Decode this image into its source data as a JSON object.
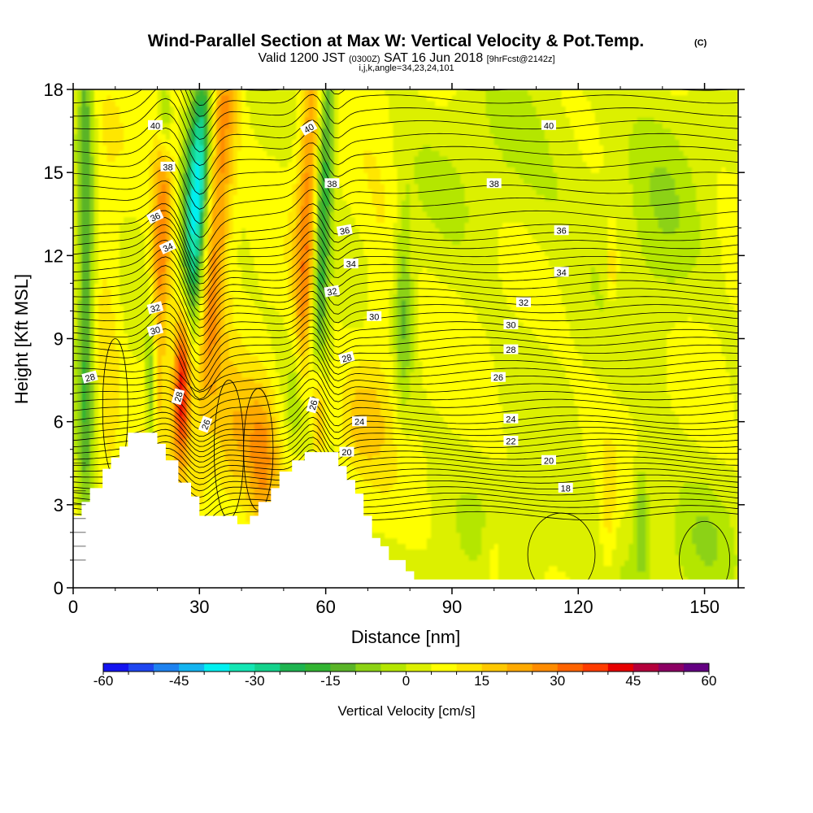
{
  "chart_data": {
    "type": "heatmap",
    "title": "Wind-Parallel Section at Max W: Vertical Velocity & Pot.Temp.",
    "title_mark": "(C)",
    "subtitle_parts": [
      "Valid 1200 JST",
      "(0300Z)",
      "SAT 16 Jun 2018",
      "[9hrFcst@2142z]"
    ],
    "subtitle2": "i,j,k,angle=34,23,24,101",
    "xlabel": "Distance [nm]",
    "ylabel": "Height [Kft MSL]",
    "xlim": [
      0,
      158
    ],
    "ylim": [
      0,
      18
    ],
    "x_ticks": [
      0,
      30,
      60,
      90,
      120,
      150
    ],
    "y_ticks": [
      0,
      3,
      6,
      9,
      12,
      15,
      18
    ],
    "grid": false,
    "colorbar": {
      "title": "Vertical Velocity [cm/s]",
      "range": [
        -60,
        60
      ],
      "tick_labels": [
        "-60",
        "-45",
        "-30",
        "-15",
        "0",
        "15",
        "30",
        "45",
        "60"
      ],
      "colors": [
        "#1414f0",
        "#1e46f0",
        "#1e82f0",
        "#14b4f0",
        "#00f0f0",
        "#14e6b4",
        "#14d28c",
        "#1eb450",
        "#32b432",
        "#5ab428",
        "#8cd214",
        "#b4e600",
        "#dcf000",
        "#ffff00",
        "#ffe600",
        "#ffc800",
        "#ffaa00",
        "#ff8c00",
        "#ff6400",
        "#ff3c00",
        "#e60000",
        "#b4003c",
        "#8c0064",
        "#640082"
      ]
    },
    "terrain": [
      [
        0,
        2.6
      ],
      [
        2,
        2.6
      ],
      [
        2,
        3.1
      ],
      [
        4,
        3.1
      ],
      [
        4,
        3.6
      ],
      [
        7,
        3.6
      ],
      [
        7,
        4.3
      ],
      [
        9,
        4.3
      ],
      [
        9,
        4.7
      ],
      [
        11,
        4.7
      ],
      [
        11,
        5.1
      ],
      [
        13,
        5.1
      ],
      [
        13,
        5.6
      ],
      [
        20,
        5.6
      ],
      [
        20,
        5.2
      ],
      [
        22,
        5.2
      ],
      [
        22,
        4.6
      ],
      [
        25,
        4.6
      ],
      [
        25,
        3.8
      ],
      [
        28,
        3.8
      ],
      [
        28,
        3.3
      ],
      [
        30,
        3.3
      ],
      [
        30,
        2.6
      ],
      [
        39,
        2.6
      ],
      [
        39,
        2.3
      ],
      [
        42,
        2.3
      ],
      [
        42,
        2.6
      ],
      [
        44,
        2.6
      ],
      [
        44,
        3.1
      ],
      [
        47,
        3.1
      ],
      [
        47,
        3.6
      ],
      [
        49,
        3.6
      ],
      [
        49,
        4.2
      ],
      [
        52,
        4.2
      ],
      [
        52,
        4.6
      ],
      [
        55,
        4.6
      ],
      [
        55,
        4.9
      ],
      [
        63,
        4.9
      ],
      [
        63,
        4.4
      ],
      [
        65,
        4.4
      ],
      [
        65,
        3.9
      ],
      [
        67,
        3.9
      ],
      [
        67,
        3.4
      ],
      [
        69,
        3.4
      ],
      [
        69,
        2.6
      ],
      [
        71,
        2.6
      ],
      [
        71,
        1.8
      ],
      [
        73,
        1.8
      ],
      [
        73,
        1.5
      ],
      [
        75,
        1.5
      ],
      [
        75,
        1.0
      ],
      [
        79,
        1.0
      ],
      [
        79,
        0.6
      ],
      [
        81,
        0.6
      ],
      [
        81,
        0.3
      ],
      [
        158,
        0.3
      ]
    ],
    "w_features": [
      {
        "x": 3,
        "y": 12,
        "sx": 1.4,
        "sy": 9,
        "w": -22,
        "tilt": 0
      },
      {
        "x": 8,
        "y": 8,
        "sx": 2.5,
        "sy": 5,
        "w": 8,
        "tilt": 0
      },
      {
        "x": 18.5,
        "y": 7.2,
        "sx": 0.9,
        "sy": 2.0,
        "w": -24,
        "tilt": 0
      },
      {
        "x": 21,
        "y": 12.5,
        "sx": 1.8,
        "sy": 5,
        "w": 24,
        "tilt": 0.24
      },
      {
        "x": 26,
        "y": 7.5,
        "sx": 1.6,
        "sy": 2.3,
        "w": 60,
        "tilt": 0.15
      },
      {
        "x": 29,
        "y": 13,
        "sx": 2.1,
        "sy": 5.0,
        "w": -46,
        "tilt": 0.4
      },
      {
        "x": 34,
        "y": 14,
        "sx": 2.6,
        "sy": 6.0,
        "w": 26,
        "tilt": 0.4
      },
      {
        "x": 22,
        "y": 17.2,
        "sx": 1.2,
        "sy": 1.3,
        "w": -22,
        "tilt": 0
      },
      {
        "x": 38,
        "y": 5.2,
        "sx": 3.5,
        "sy": 2.0,
        "w": 14,
        "tilt": 0
      },
      {
        "x": 45,
        "y": 4.5,
        "sx": 2.8,
        "sy": 2.0,
        "w": 22,
        "tilt": 0
      },
      {
        "x": 53,
        "y": 6.5,
        "sx": 1.5,
        "sy": 1.8,
        "w": -18,
        "tilt": 0
      },
      {
        "x": 59,
        "y": 12.5,
        "sx": 1.5,
        "sy": 7.0,
        "w": -28,
        "tilt": 0.25
      },
      {
        "x": 55.5,
        "y": 12.5,
        "sx": 1.9,
        "sy": 7.0,
        "w": 24,
        "tilt": 0.25
      },
      {
        "x": 58,
        "y": 6.3,
        "sx": 1.3,
        "sy": 1.6,
        "w": 32,
        "tilt": 0
      },
      {
        "x": 68,
        "y": 6.0,
        "sx": 4.0,
        "sy": 1.4,
        "w": 10,
        "tilt": 0
      },
      {
        "x": 78.5,
        "y": 10.0,
        "sx": 1.5,
        "sy": 2.5,
        "w": -16,
        "tilt": 0
      },
      {
        "x": 73,
        "y": 10.5,
        "sx": 3.5,
        "sy": 4.0,
        "w": 6,
        "tilt": 0
      },
      {
        "x": 110,
        "y": 15,
        "sx": 20,
        "sy": 2.5,
        "w": -5,
        "tilt": 0
      },
      {
        "x": 140,
        "y": 13,
        "sx": 6,
        "sy": 3.5,
        "w": -6,
        "tilt": 0
      },
      {
        "x": 118,
        "y": 1.5,
        "sx": 20,
        "sy": 1.6,
        "w": -5,
        "tilt": 0
      },
      {
        "x": 127,
        "y": 2.5,
        "sx": 1.5,
        "sy": 1.6,
        "w": 10,
        "tilt": 0
      },
      {
        "x": 135,
        "y": 2.5,
        "sx": 1.3,
        "sy": 1.5,
        "w": -15,
        "tilt": 0
      },
      {
        "x": 150,
        "y": 1.5,
        "sx": 5,
        "sy": 1.5,
        "w": -6,
        "tilt": 0
      },
      {
        "x": 128,
        "y": 11.5,
        "sx": 1.0,
        "sy": 1.0,
        "w": 12,
        "tilt": 0
      },
      {
        "x": 100,
        "y": 1.0,
        "sx": 2.0,
        "sy": 1.0,
        "w": 8,
        "tilt": 0
      }
    ],
    "theta_contours": [
      {
        "value": 18,
        "y": 3.5,
        "label": "18",
        "lx": 117,
        "ly": 3.6
      },
      {
        "value": 20,
        "y": 4.5,
        "label": "20",
        "lx": 113,
        "ly": 4.6
      },
      {
        "value": 20,
        "y": 4.5,
        "label": "20",
        "lx": 65,
        "ly": 4.9
      },
      {
        "value": 22,
        "y": 5.3,
        "label": "22",
        "lx": 104,
        "ly": 5.3
      },
      {
        "value": 24,
        "y": 6.1,
        "label": "24",
        "lx": 104,
        "ly": 6.1
      },
      {
        "value": 24,
        "y": 6.1,
        "label": "24",
        "lx": 68,
        "ly": 6.0
      },
      {
        "value": 26,
        "y": 7.6,
        "label": "26",
        "lx": 101,
        "ly": 7.6
      },
      {
        "value": 28,
        "y": 8.6,
        "label": "28",
        "lx": 104,
        "ly": 8.6
      },
      {
        "value": 30,
        "y": 9.5,
        "label": "30",
        "lx": 104,
        "ly": 9.5
      },
      {
        "value": 32,
        "y": 10.3,
        "label": "32",
        "lx": 107,
        "ly": 10.3
      },
      {
        "value": 34,
        "y": 11.5,
        "label": "34",
        "lx": 116,
        "ly": 11.4
      },
      {
        "value": 36,
        "y": 13.0,
        "label": "36",
        "lx": 116,
        "ly": 12.9
      },
      {
        "value": 38,
        "y": 14.5,
        "label": "38",
        "lx": 100,
        "ly": 14.6
      },
      {
        "value": 40,
        "y": 16.7,
        "label": "40",
        "lx": 113,
        "ly": 16.7
      }
    ],
    "inline_labels": [
      {
        "label": "40",
        "x": 19.5,
        "y": 16.7,
        "rot": 0
      },
      {
        "label": "38",
        "x": 22.5,
        "y": 15.2,
        "rot": 0
      },
      {
        "label": "36",
        "x": 19.5,
        "y": 13.4,
        "rot": -25
      },
      {
        "label": "34",
        "x": 22.5,
        "y": 12.3,
        "rot": -25
      },
      {
        "label": "32",
        "x": 19.5,
        "y": 10.1,
        "rot": -15
      },
      {
        "label": "30",
        "x": 19.5,
        "y": 9.3,
        "rot": -15
      },
      {
        "label": "28",
        "x": 4,
        "y": 7.6,
        "rot": -15
      },
      {
        "label": "28",
        "x": 25,
        "y": 6.9,
        "rot": -75
      },
      {
        "label": "26",
        "x": 31.5,
        "y": 5.9,
        "rot": -70
      },
      {
        "label": "40",
        "x": 56,
        "y": 16.6,
        "rot": -30
      },
      {
        "label": "38",
        "x": 61.5,
        "y": 14.6,
        "rot": 0
      },
      {
        "label": "36",
        "x": 64.5,
        "y": 12.9,
        "rot": -10
      },
      {
        "label": "34",
        "x": 66,
        "y": 11.7,
        "rot": 0
      },
      {
        "label": "32",
        "x": 61.5,
        "y": 10.7,
        "rot": -10
      },
      {
        "label": "30",
        "x": 71.5,
        "y": 9.8,
        "rot": 0
      },
      {
        "label": "28",
        "x": 65,
        "y": 8.3,
        "rot": -15
      },
      {
        "label": "26",
        "x": 57,
        "y": 6.6,
        "rot": -75
      }
    ]
  }
}
